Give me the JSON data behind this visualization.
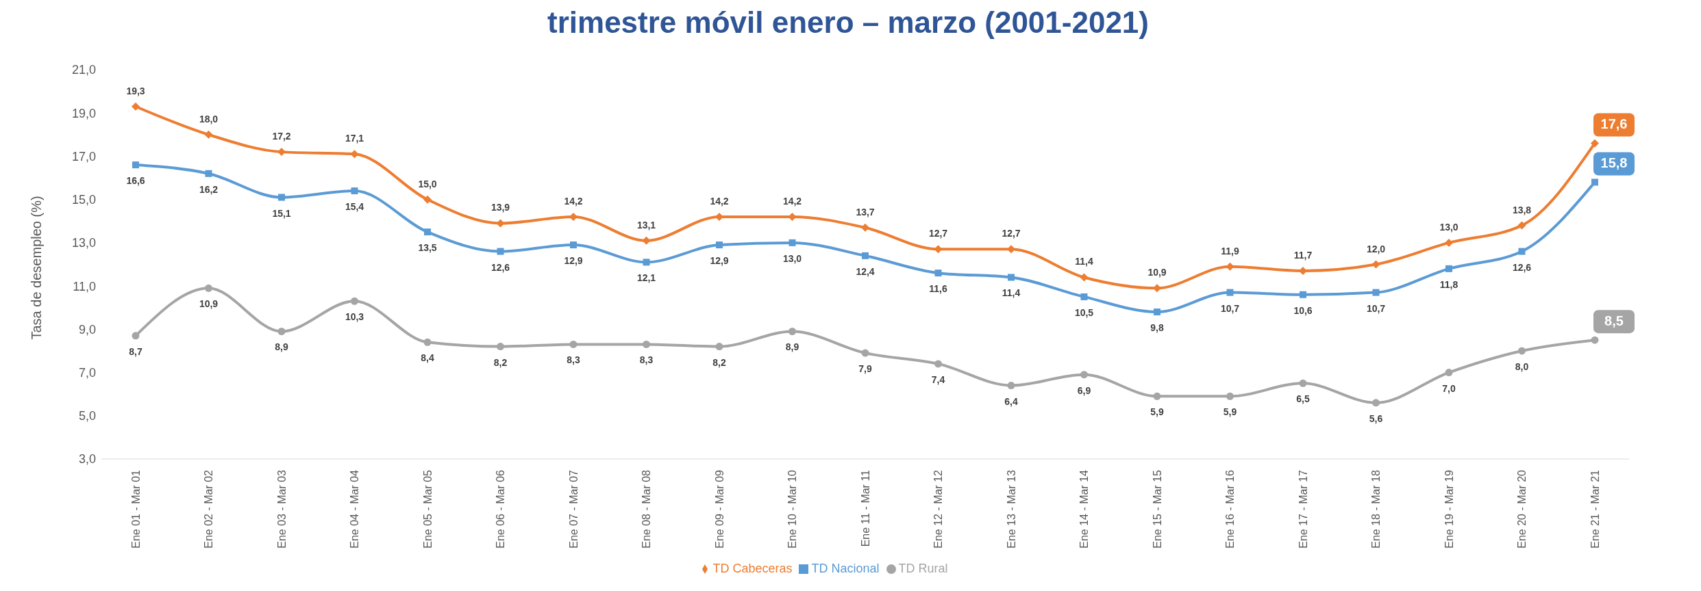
{
  "chart_data": {
    "type": "line",
    "title": "trimestre móvil enero – marzo (2001-2021)",
    "ylabel": "Tasa de desempleo (%)",
    "categories": [
      "Ene 01 - Mar 01",
      "Ene 02 - Mar 02",
      "Ene 03 - Mar 03",
      "Ene 04 - Mar 04",
      "Ene 05 - Mar 05",
      "Ene 06 - Mar 06",
      "Ene 07 - Mar 07",
      "Ene 08 - Mar 08",
      "Ene 09 - Mar 09",
      "Ene 10 - Mar 10",
      "Ene 11 - Mar 11",
      "Ene 12 - Mar 12",
      "Ene 13 - Mar 13",
      "Ene 14 - Mar 14",
      "Ene 15 - Mar 15",
      "Ene 16 - Mar 16",
      "Ene 17 - Mar 17",
      "Ene 18 - Mar 18",
      "Ene 19 - Mar 19",
      "Ene 20 - Mar 20",
      "Ene 21 - Mar 21"
    ],
    "series": [
      {
        "name": "TD Nacional",
        "color": "#5b9bd5",
        "marker": "square",
        "values": [
          16.6,
          16.2,
          15.1,
          15.4,
          13.5,
          12.6,
          12.9,
          12.1,
          12.9,
          13.0,
          12.4,
          11.6,
          11.4,
          10.5,
          9.8,
          10.7,
          10.6,
          10.7,
          11.8,
          12.6,
          15.8
        ],
        "value_labels": [
          "16,6",
          "16,2",
          "15,1",
          "15,4",
          "13,5",
          "12,6",
          "12,9",
          "12,1",
          "12,9",
          "13,0",
          "12,4",
          "11,6",
          "11,4",
          "10,5",
          "9,8",
          "10,7",
          "10,6",
          "10,7",
          "11,8",
          "12,6",
          "15,8"
        ]
      },
      {
        "name": "TD Cabeceras",
        "color": "#ed7d31",
        "marker": "diamond",
        "values": [
          19.3,
          18.0,
          17.2,
          17.1,
          15.0,
          13.9,
          14.2,
          13.1,
          14.2,
          14.2,
          13.7,
          12.7,
          12.7,
          11.4,
          10.9,
          11.9,
          11.7,
          12.0,
          13.0,
          13.8,
          17.6
        ],
        "value_labels": [
          "19,3",
          "18,0",
          "17,2",
          "17,1",
          "15,0",
          "13,9",
          "14,2",
          "13,1",
          "14,2",
          "14,2",
          "13,7",
          "12,7",
          "12,7",
          "11,4",
          "10,9",
          "11,9",
          "11,7",
          "12,0",
          "13,0",
          "13,8",
          "17,6"
        ]
      },
      {
        "name": "TD Rural",
        "color": "#a5a5a5",
        "marker": "circle",
        "values": [
          8.7,
          10.9,
          8.9,
          10.3,
          8.4,
          8.2,
          8.3,
          8.3,
          8.2,
          8.9,
          7.9,
          7.4,
          6.4,
          6.9,
          5.9,
          5.9,
          6.5,
          5.6,
          7.0,
          8.0,
          8.5
        ],
        "value_labels": [
          "8,7",
          "10,9",
          "8,9",
          "10,3",
          "8,4",
          "8,2",
          "8,3",
          "8,3",
          "8,2",
          "8,9",
          "7,9",
          "7,4",
          "6,4",
          "6,9",
          "5,9",
          "5,9",
          "6,5",
          "5,6",
          "7,0",
          "8,0",
          "8,5"
        ]
      }
    ],
    "ylim": [
      3,
      21
    ],
    "yticks": [
      {
        "value": 3,
        "label": "3,0"
      },
      {
        "value": 5,
        "label": "5,0"
      },
      {
        "value": 7,
        "label": "7,0"
      },
      {
        "value": 9,
        "label": "9,0"
      },
      {
        "value": 11,
        "label": "11,0"
      },
      {
        "value": 13,
        "label": "13,0"
      },
      {
        "value": 15,
        "label": "15,0"
      },
      {
        "value": 17,
        "label": "17,0"
      },
      {
        "value": 19,
        "label": "19,0"
      },
      {
        "value": 21,
        "label": "21,0"
      }
    ],
    "grid": false,
    "legend": "bottom",
    "line_style": "solid"
  }
}
